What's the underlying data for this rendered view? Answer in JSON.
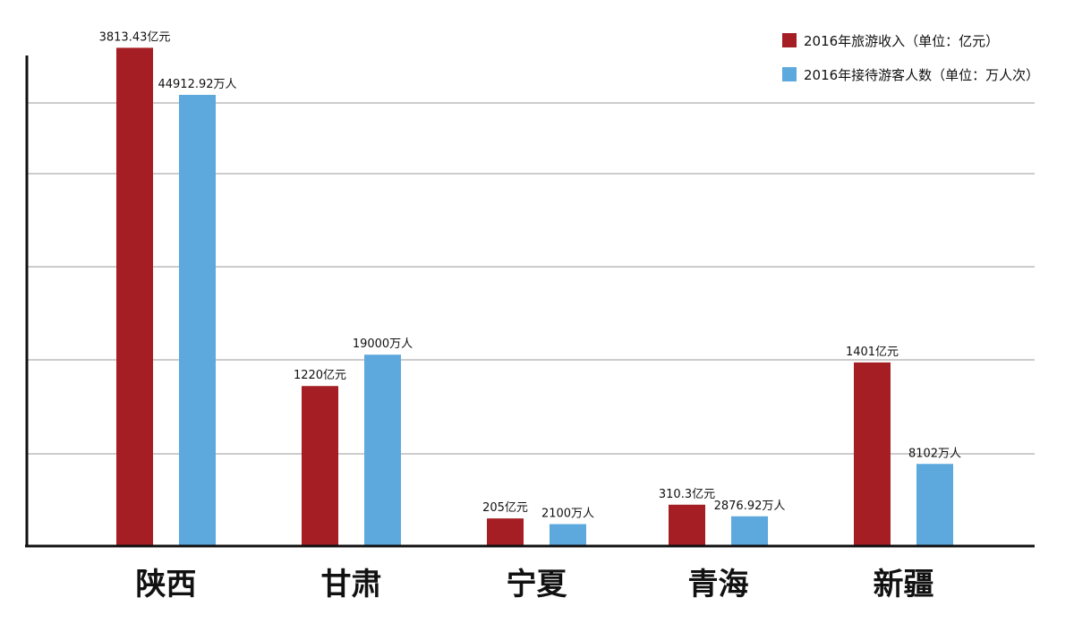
{
  "chart_data": {
    "type": "bar",
    "title": "",
    "xlabel": "",
    "ylabel": "",
    "grid": true,
    "legend_position": "top-right",
    "categories": [
      "陕西",
      "甘肃",
      "宁夏",
      "青海",
      "新疆"
    ],
    "series": [
      {
        "name": "2016年旅游收入（单位：亿元）",
        "color": "#a51e24",
        "values": [
          3813.43,
          1220,
          205,
          310.3,
          1401
        ],
        "labels": [
          "3813.43亿元",
          "1220亿元",
          "205亿元",
          "310.3亿元",
          "1401亿元"
        ]
      },
      {
        "name": "2016年接待游客人数（单位：万人次）",
        "color": "#5da8dc",
        "values": [
          44912.92,
          19000,
          2100,
          2876.92,
          8102
        ],
        "labels": [
          "44912.92万人",
          "19000万人",
          "2100万人",
          "2876.92万人",
          "8102万人"
        ]
      }
    ]
  }
}
